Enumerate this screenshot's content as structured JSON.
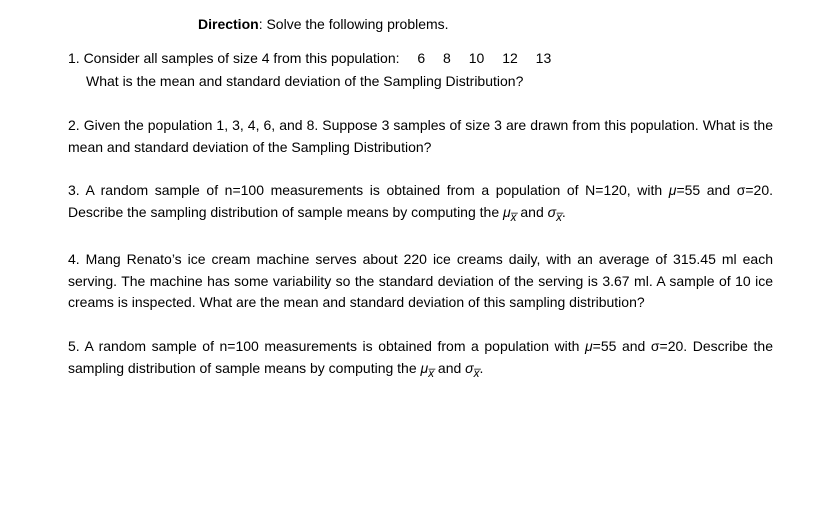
{
  "direction": {
    "label": "Direction",
    "text": ": Solve the following problems."
  },
  "questions": {
    "q1_line1": "1. Consider all samples of size 4 from this population:  6  8  10  12  13",
    "q1_line2": "What is the mean and standard deviation of the Sampling Distribution?",
    "q2": "2. Given the population 1, 3, 4, 6, and 8. Suppose 3 samples of size 3 are drawn from this population. What is the mean and standard deviation of the Sampling Distribution?",
    "q3_a": "3. A random sample of n=100 measurements is obtained from a population of N=120, with ",
    "q3_mu": "μ",
    "q3_b": "=55 and σ=20. Describe the sampling distribution of sample means by computing the ",
    "q3_mux": "μ",
    "q3_sub1": "x̅",
    "q3_c": " and ",
    "q3_sigma": "σ",
    "q3_sub2": "x̅",
    "q3_d": ".",
    "q4": "4. Mang Renato’s ice cream machine serves about 220 ice creams daily, with an average of 315.45 ml each serving. The machine has some variability so the standard deviation of the serving is 3.67 ml. A sample of 10 ice creams is inspected. What are the mean and standard deviation of this sampling distribution?",
    "q5_a": "5. A random sample of n=100 measurements is obtained from a population with ",
    "q5_mu": "μ",
    "q5_b": "=55 and σ=20. Describe the sampling distribution of sample means by computing the ",
    "q5_mux": "μ",
    "q5_sub1": "x̅",
    "q5_c": " and ",
    "q5_sigma": "σ",
    "q5_sub2": "x̅",
    "q5_d": "."
  }
}
